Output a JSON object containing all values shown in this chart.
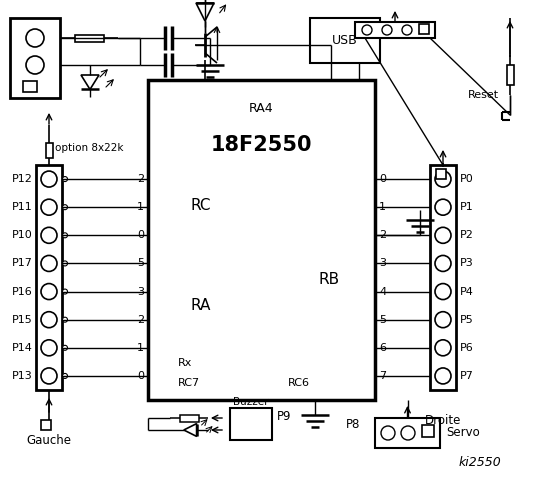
{
  "bg_color": "#ffffff",
  "fg_color": "#000000",
  "title": "ki2550",
  "chip_label": "18F2550",
  "chip_sublabel": "RA4",
  "left_pins": [
    "P12",
    "P11",
    "P10",
    "P17",
    "P16",
    "P15",
    "P14",
    "P13"
  ],
  "right_pins": [
    "P0",
    "P1",
    "P2",
    "P3",
    "P4",
    "P5",
    "P6",
    "P7"
  ],
  "left_rc_pins": [
    "2",
    "1",
    "0",
    "5",
    "3",
    "2",
    "1",
    "0"
  ],
  "right_rb_pins": [
    "0",
    "1",
    "2",
    "3",
    "4",
    "5",
    "6",
    "7"
  ],
  "rc_label": "RC",
  "ra_label": "RA",
  "rb_label": "RB",
  "gauche_label": "Gauche",
  "droite_label": "Droite",
  "option_label": "option 8x22k",
  "buzzer_label": "Buzzer",
  "p9_label": "P9",
  "p8_label": "P8",
  "servo_label": "Servo",
  "reset_label": "Reset",
  "usb_label": "USB",
  "rx_label": "Rx",
  "rc7_label": "RC7",
  "rc6_label": "RC6"
}
